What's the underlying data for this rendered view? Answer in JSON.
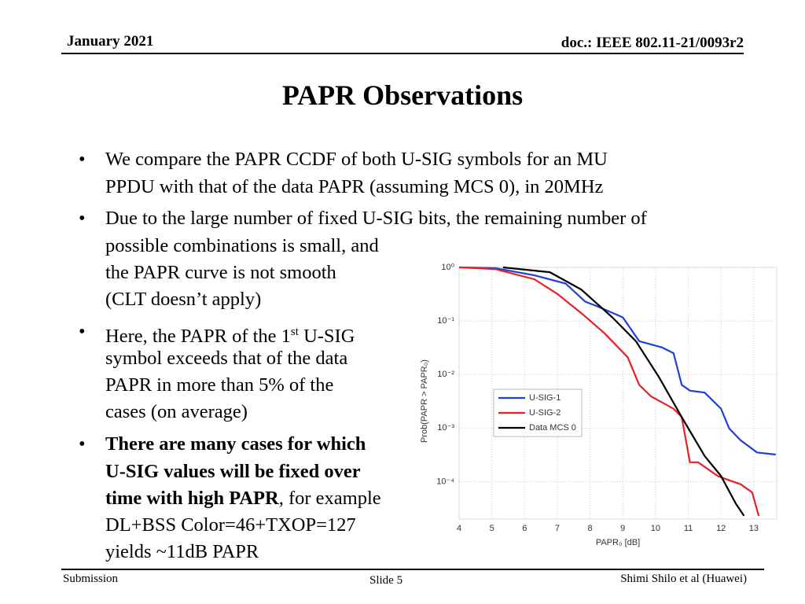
{
  "header": {
    "date": "January 2021",
    "doc": "doc.: IEEE 802.11-21/0093r2"
  },
  "title": "PAPR Observations",
  "bullets": [
    [
      "We compare the PAPR CCDF of both U-SIG symbols for an MU",
      "PPDU with that of the data PAPR (assuming MCS 0), in 20MHz"
    ],
    [
      "Due to the large number of fixed U-SIG bits, the remaining number of",
      "possible combinations is small, and",
      "the PAPR curve is not smooth",
      "(CLT doesn’t apply)"
    ],
    [
      "Here, the PAPR of the 1",
      "st",
      " U-SIG",
      "symbol exceeds that of the data",
      "PAPR in more than 5% of the",
      "cases (on average)"
    ],
    [
      "There are many cases for which",
      "U-SIG values will be fixed over",
      "time with high PAPR",
      ", for example",
      "DL+BSS Color=46+TXOP=127",
      "yields ~11dB PAPR"
    ]
  ],
  "footer": {
    "left": "Submission",
    "center": "Slide 5",
    "right": "Shimi Shilo et al (Huawei)"
  },
  "chart_data": {
    "type": "line",
    "x_label": "PAPR₀ [dB]",
    "y_label": "Prob(PAPR > PAPR₀)",
    "log_y": true,
    "grid": true,
    "legend": "center left",
    "xlim": [
      4,
      13.7
    ],
    "ylim": [
      2e-05,
      1
    ],
    "xticks": [
      4,
      5,
      6,
      7,
      8,
      9,
      10,
      11,
      12,
      13
    ],
    "yticks": [
      {
        "value": 1,
        "label": "10⁰"
      },
      {
        "value": 0.1,
        "label": "10⁻¹"
      },
      {
        "value": 0.01,
        "label": "10⁻²"
      },
      {
        "value": 0.001,
        "label": "10⁻³"
      },
      {
        "value": 0.0001,
        "label": "10⁻⁴"
      }
    ],
    "series": [
      {
        "name": "U-SIG-1",
        "color": "#1f3fd8",
        "x": [
          4,
          5.1,
          6.3,
          7.25,
          7.85,
          8.2,
          9.0,
          9.5,
          10.2,
          10.55,
          10.8,
          11.05,
          11.5,
          12.0,
          12.25,
          12.6,
          13.1,
          13.67
        ],
        "values": [
          1,
          0.97,
          0.71,
          0.5,
          0.23,
          0.19,
          0.117,
          0.042,
          0.032,
          0.025,
          0.0064,
          0.005,
          0.0046,
          0.0023,
          0.00098,
          0.00059,
          0.00035,
          0.00032
        ]
      },
      {
        "name": "U-SIG-2",
        "color": "#e8202a",
        "x": [
          4,
          5.1,
          6.3,
          7.0,
          7.73,
          8.44,
          9.15,
          9.5,
          9.86,
          10.55,
          10.8,
          11.05,
          11.3,
          11.9,
          12.25,
          12.6,
          12.95,
          13.15
        ],
        "values": [
          1,
          0.93,
          0.6,
          0.32,
          0.14,
          0.059,
          0.021,
          0.0064,
          0.0039,
          0.0023,
          0.0016,
          0.00023,
          0.00023,
          0.000127,
          0.000106,
          8.9e-05,
          6.3e-05,
          2.3e-05
        ]
      },
      {
        "name": "Data MCS 0",
        "color": "#000000",
        "x": [
          5.34,
          6.77,
          7.73,
          8.68,
          9.4,
          10.1,
          10.8,
          11.5,
          12.0,
          12.45,
          12.7
        ],
        "values": [
          1,
          0.815,
          0.385,
          0.117,
          0.042,
          0.009,
          0.0016,
          0.0003,
          0.000127,
          3.9e-05,
          2.3e-05
        ]
      }
    ]
  }
}
